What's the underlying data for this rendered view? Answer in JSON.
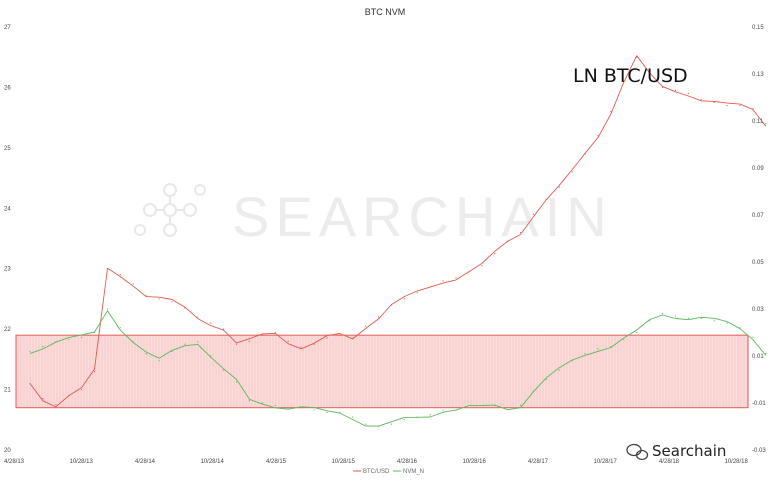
{
  "chart_data": {
    "type": "line",
    "title": "BTC NVM",
    "annotation": "LN BTC/USD",
    "watermark": "SEARCHAIN",
    "brand": "Searchain",
    "x_ticks": [
      "4/28/13",
      "10/28/13",
      "4/28/14",
      "10/28/14",
      "4/28/15",
      "10/28/15",
      "4/28/16",
      "10/28/16",
      "4/28/17",
      "10/28/17",
      "4/28/18",
      "10/28/18"
    ],
    "y_left_ticks": [
      "20",
      "21",
      "22",
      "23",
      "24",
      "25",
      "26",
      "27"
    ],
    "y_right_ticks": [
      "-0.03",
      "-0.01",
      "0.01",
      "0.03",
      "0.05",
      "0.07",
      "0.09",
      "0.11",
      "0.13",
      "0.15"
    ],
    "ylim_left": [
      20,
      27
    ],
    "ylim_right": [
      -0.03,
      0.15
    ],
    "band": {
      "left_low": 20.7,
      "left_high": 21.9,
      "color": "#f08080"
    },
    "colors": {
      "series_a": "#e05a4f",
      "series_b": "#5cb85c"
    },
    "series": [
      {
        "name": "BTC/USD",
        "axis": "left",
        "x_index": [
          0,
          0.2,
          0.4,
          0.6,
          0.8,
          1,
          1.2,
          1.4,
          1.6,
          1.8,
          2,
          2.2,
          2.4,
          2.6,
          2.8,
          3,
          3.2,
          3.4,
          3.6,
          3.8,
          4,
          4.2,
          4.4,
          4.6,
          4.8,
          5,
          5.2,
          5.4,
          5.6,
          5.8,
          6,
          6.2,
          6.4,
          6.6,
          6.8,
          7,
          7.2,
          7.4,
          7.6,
          7.8,
          8,
          8.2,
          8.4,
          8.6,
          8.8,
          9,
          9.2,
          9.4,
          9.6,
          9.8,
          10,
          10.2,
          10.4,
          10.6,
          10.8,
          11,
          11.2,
          11.4
        ],
        "values": [
          21.1,
          20.85,
          20.75,
          20.9,
          21.0,
          21.3,
          23.0,
          22.9,
          22.75,
          22.55,
          22.5,
          22.45,
          22.35,
          22.2,
          22.1,
          22.0,
          21.75,
          21.8,
          21.9,
          21.95,
          21.8,
          21.7,
          21.75,
          21.85,
          21.9,
          21.85,
          22.05,
          22.2,
          22.4,
          22.5,
          22.6,
          22.7,
          22.8,
          22.85,
          22.95,
          23.05,
          23.25,
          23.45,
          23.6,
          23.9,
          24.15,
          24.35,
          24.6,
          24.9,
          25.2,
          25.6,
          26.1,
          26.5,
          26.2,
          26.0,
          25.95,
          25.9,
          25.8,
          25.75,
          25.7,
          25.7,
          25.65,
          25.4
        ]
      },
      {
        "name": "NVM_N",
        "axis": "right",
        "x_index": [
          0,
          0.2,
          0.4,
          0.6,
          0.8,
          1,
          1.2,
          1.4,
          1.6,
          1.8,
          2,
          2.2,
          2.4,
          2.6,
          2.8,
          3,
          3.2,
          3.4,
          3.6,
          3.8,
          4,
          4.2,
          4.4,
          4.6,
          4.8,
          5,
          5.2,
          5.4,
          5.6,
          5.8,
          6,
          6.2,
          6.4,
          6.6,
          6.8,
          7,
          7.2,
          7.4,
          7.6,
          7.8,
          8,
          8.2,
          8.4,
          8.6,
          8.8,
          9,
          9.2,
          9.4,
          9.6,
          9.8,
          10,
          10.2,
          10.4,
          10.6,
          10.8,
          11,
          11.2,
          11.4
        ],
        "values": [
          0.012,
          0.014,
          0.016,
          0.017,
          0.018,
          0.02,
          0.03,
          0.022,
          0.016,
          0.011,
          0.008,
          0.012,
          0.015,
          0.016,
          0.01,
          0.004,
          -0.001,
          -0.009,
          -0.01,
          -0.011,
          -0.012,
          -0.012,
          -0.013,
          -0.014,
          -0.014,
          -0.016,
          -0.019,
          -0.02,
          -0.019,
          -0.017,
          -0.016,
          -0.015,
          -0.013,
          -0.013,
          -0.012,
          -0.012,
          -0.011,
          -0.012,
          -0.011,
          -0.005,
          0.0,
          0.004,
          0.008,
          0.011,
          0.013,
          0.014,
          0.017,
          0.02,
          0.025,
          0.028,
          0.027,
          0.026,
          0.026,
          0.025,
          0.024,
          0.022,
          0.018,
          0.011
        ]
      }
    ]
  }
}
